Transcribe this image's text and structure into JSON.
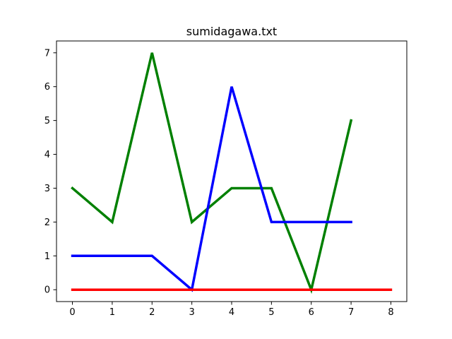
{
  "chart_data": {
    "type": "line",
    "title": "sumidagawa.txt",
    "xlabel": "",
    "ylabel": "",
    "xlim": [
      -0.4,
      8.4
    ],
    "ylim": [
      -0.35,
      7.35
    ],
    "xticks": [
      0,
      1,
      2,
      3,
      4,
      5,
      6,
      7,
      8
    ],
    "yticks": [
      0,
      1,
      2,
      3,
      4,
      5,
      6,
      7
    ],
    "grid": false,
    "legend": "none",
    "series": [
      {
        "color": "#008000",
        "x": [
          0,
          1,
          2,
          3,
          4,
          5,
          6,
          7
        ],
        "y": [
          3,
          2,
          7,
          2,
          3,
          3,
          0,
          5
        ]
      },
      {
        "color": "#0000ff",
        "x": [
          0,
          1,
          2,
          3,
          4,
          5,
          6,
          7
        ],
        "y": [
          1,
          1,
          1,
          0,
          6,
          2,
          2,
          2
        ]
      },
      {
        "color": "#ff0000",
        "x": [
          0,
          1,
          2,
          3,
          4,
          5,
          6,
          7,
          8
        ],
        "y": [
          0,
          0,
          0,
          0,
          0,
          0,
          0,
          0,
          0
        ]
      }
    ]
  }
}
